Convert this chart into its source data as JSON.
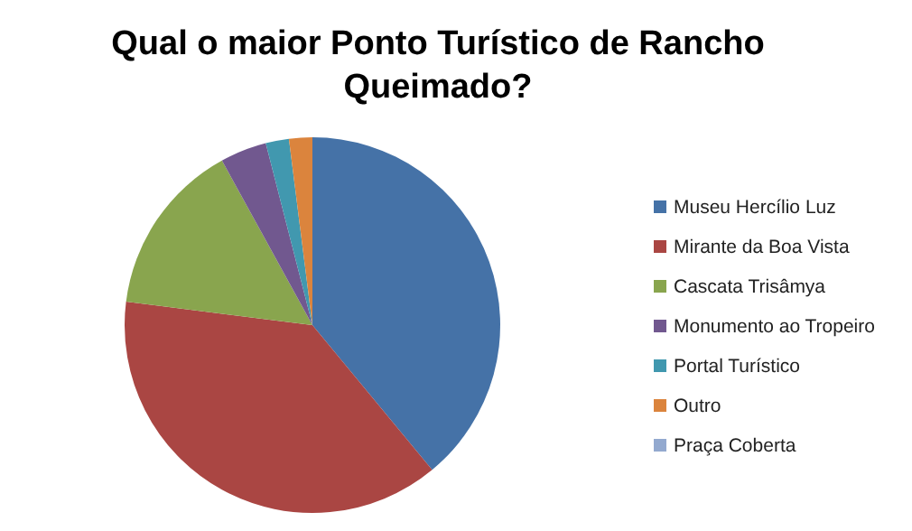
{
  "chart_data": {
    "type": "pie",
    "title": "Qual o maior Ponto Turístico de Rancho Queimado?",
    "categories": [
      "Museu Hercílio Luz",
      "Mirante da Boa Vista",
      "Cascata Trisâmya",
      "Monumento ao Tropeiro",
      "Portal Turístico",
      "Outro",
      "Praça Coberta"
    ],
    "values": [
      39,
      38,
      15,
      4,
      2,
      2,
      0
    ],
    "colors": [
      "#4572a7",
      "#aa4643",
      "#89a54e",
      "#71588f",
      "#4198af",
      "#db843d",
      "#93a9cf"
    ],
    "legend": "right"
  }
}
